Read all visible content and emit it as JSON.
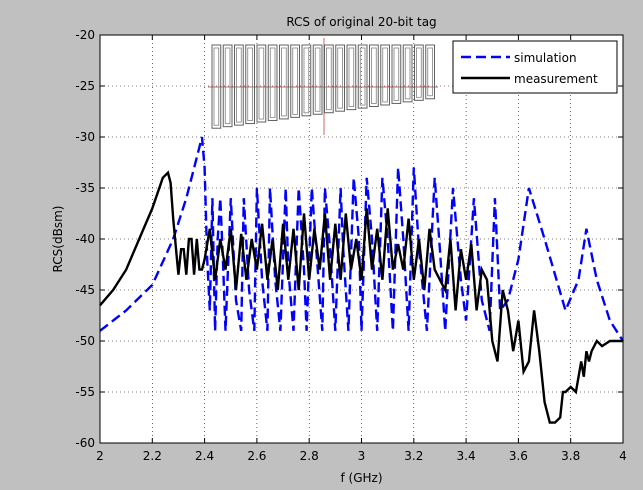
{
  "chart_data": {
    "type": "line",
    "title": "RCS of original 20-bit tag",
    "xlabel": "f (GHz)",
    "ylabel": "RCS(dBsm)",
    "xlim": [
      2,
      4
    ],
    "ylim": [
      -60,
      -20
    ],
    "xticks": [
      2,
      2.2,
      2.4,
      2.6,
      2.8,
      3,
      3.2,
      3.4,
      3.6,
      3.8,
      4
    ],
    "xtick_labels": [
      "2",
      "2.2",
      "2.4",
      "2.6",
      "2.8",
      "3",
      "3.2",
      "3.4",
      "3.6",
      "3.8",
      "4"
    ],
    "yticks": [
      -20,
      -25,
      -30,
      -35,
      -40,
      -45,
      -50,
      -55,
      -60
    ],
    "ytick_labels": [
      "-20",
      "-25",
      "-30",
      "-35",
      "-40",
      "-45",
      "-50",
      "-55",
      "-60"
    ],
    "grid": true,
    "legend_position": "top-right",
    "series": [
      {
        "name": "simulation",
        "color": "#0000ff",
        "style": "dashed",
        "x": [
          2.0,
          2.1,
          2.2,
          2.28,
          2.33,
          2.37,
          2.39,
          2.4,
          2.41,
          2.42,
          2.43,
          2.44,
          2.45,
          2.46,
          2.47,
          2.48,
          2.5,
          2.52,
          2.54,
          2.55,
          2.57,
          2.59,
          2.6,
          2.62,
          2.64,
          2.65,
          2.67,
          2.69,
          2.71,
          2.72,
          2.74,
          2.76,
          2.78,
          2.79,
          2.81,
          2.83,
          2.85,
          2.86,
          2.88,
          2.9,
          2.92,
          2.93,
          2.95,
          2.97,
          2.99,
          3.0,
          3.02,
          3.04,
          3.06,
          3.08,
          3.1,
          3.12,
          3.14,
          3.16,
          3.18,
          3.2,
          3.22,
          3.25,
          3.28,
          3.3,
          3.32,
          3.35,
          3.38,
          3.4,
          3.43,
          3.46,
          3.49,
          3.51,
          3.53,
          3.56,
          3.6,
          3.64,
          3.7,
          3.78,
          3.83,
          3.86,
          3.9,
          3.95,
          4.0
        ],
        "y": [
          -49,
          -47,
          -44.5,
          -40,
          -36,
          -32,
          -30,
          -33,
          -42,
          -47,
          -36,
          -49,
          -40,
          -36,
          -42,
          -49,
          -36,
          -46,
          -49,
          -36,
          -45,
          -49,
          -35,
          -44,
          -49,
          -35,
          -44,
          -49,
          -35,
          -43,
          -49,
          -35,
          -43,
          -49,
          -35,
          -42,
          -49,
          -35,
          -41,
          -49,
          -35,
          -41,
          -49,
          -34,
          -40,
          -49,
          -34,
          -40,
          -49,
          -34,
          -40,
          -49,
          -33,
          -40,
          -49,
          -33,
          -41,
          -49,
          -34,
          -41,
          -49,
          -35,
          -44,
          -48,
          -36,
          -46,
          -49,
          -36,
          -47,
          -46,
          -42,
          -35,
          -40,
          -47,
          -44,
          -39,
          -44,
          -48,
          -50
        ]
      },
      {
        "name": "measurement",
        "color": "#000000",
        "style": "solid",
        "x": [
          2.0,
          2.05,
          2.1,
          2.15,
          2.2,
          2.24,
          2.26,
          2.27,
          2.28,
          2.3,
          2.31,
          2.32,
          2.33,
          2.34,
          2.35,
          2.36,
          2.37,
          2.38,
          2.39,
          2.4,
          2.42,
          2.44,
          2.46,
          2.48,
          2.5,
          2.52,
          2.54,
          2.56,
          2.58,
          2.6,
          2.62,
          2.64,
          2.66,
          2.68,
          2.7,
          2.72,
          2.74,
          2.76,
          2.78,
          2.8,
          2.82,
          2.84,
          2.86,
          2.88,
          2.9,
          2.92,
          2.94,
          2.96,
          2.98,
          3.0,
          3.02,
          3.04,
          3.06,
          3.08,
          3.1,
          3.12,
          3.14,
          3.16,
          3.18,
          3.2,
          3.22,
          3.24,
          3.26,
          3.28,
          3.3,
          3.32,
          3.34,
          3.36,
          3.38,
          3.4,
          3.42,
          3.44,
          3.46,
          3.48,
          3.5,
          3.52,
          3.54,
          3.56,
          3.58,
          3.6,
          3.62,
          3.64,
          3.66,
          3.68,
          3.7,
          3.72,
          3.74,
          3.76,
          3.77,
          3.78,
          3.8,
          3.82,
          3.84,
          3.85,
          3.86,
          3.87,
          3.88,
          3.9,
          3.92,
          3.95,
          4.0
        ],
        "y": [
          -46.5,
          -45,
          -43,
          -40,
          -37,
          -34,
          -33.5,
          -34.5,
          -38,
          -43.5,
          -41,
          -41,
          -43.5,
          -40,
          -40,
          -43.5,
          -40,
          -43,
          -43,
          -42,
          -39,
          -44,
          -40,
          -43,
          -39,
          -45,
          -39.5,
          -44,
          -40,
          -43,
          -38.5,
          -44,
          -40,
          -45,
          -38.5,
          -44,
          -39,
          -45,
          -37.5,
          -44,
          -39,
          -43,
          -37.5,
          -44,
          -38.5,
          -44,
          -37.5,
          -43,
          -40,
          -44,
          -37,
          -43,
          -39,
          -44,
          -37,
          -43,
          -40.5,
          -43,
          -38,
          -44,
          -40,
          -45,
          -39,
          -43,
          -44,
          -45,
          -40,
          -47,
          -41,
          -44,
          -40.5,
          -47,
          -43,
          -44,
          -50,
          -52,
          -45,
          -47,
          -51,
          -48,
          -53,
          -52,
          -47,
          -51,
          -56,
          -58,
          -58,
          -57.5,
          -55,
          -55,
          -54.5,
          -55,
          -52,
          -53.5,
          -51,
          -52,
          -51,
          -50,
          -50.5,
          -50,
          -50
        ]
      }
    ]
  }
}
